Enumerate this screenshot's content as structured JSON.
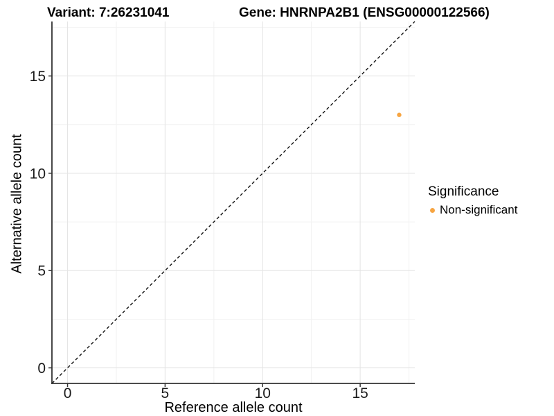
{
  "chart_data": {
    "type": "scatter",
    "title_left": "Variant: 7:26231041",
    "title_right": "Gene: HNRNPA2B1 (ENSG00000122566)",
    "xlabel": "Reference allele count",
    "ylabel": "Alternative allele count",
    "xlim": [
      -0.8,
      17.8
    ],
    "ylim": [
      -0.8,
      17.8
    ],
    "xticks": [
      0,
      5,
      10,
      15
    ],
    "yticks": [
      0,
      5,
      10,
      15
    ],
    "xminor": [
      2.5,
      7.5,
      12.5,
      17.5
    ],
    "yminor": [
      2.5,
      7.5,
      12.5,
      17.5
    ],
    "grid": "major+minor",
    "legend": {
      "title": "Significance",
      "position": "right",
      "items": [
        {
          "label": "Non-significant",
          "color": "#F7A542"
        }
      ]
    },
    "series": [
      {
        "name": "Non-significant",
        "color": "#F7A542",
        "points": [
          {
            "x": 17,
            "y": 13
          }
        ]
      }
    ],
    "identity_line": {
      "style": "dashed",
      "color": "#111111",
      "from": -0.8,
      "to": 17.8
    },
    "colors": {
      "axis_line": "#333333",
      "tick_label": "#1a1a1a",
      "grid_major": "#E5E5E5",
      "grid_minor": "#F2F2F2",
      "background": "#ffffff"
    }
  }
}
